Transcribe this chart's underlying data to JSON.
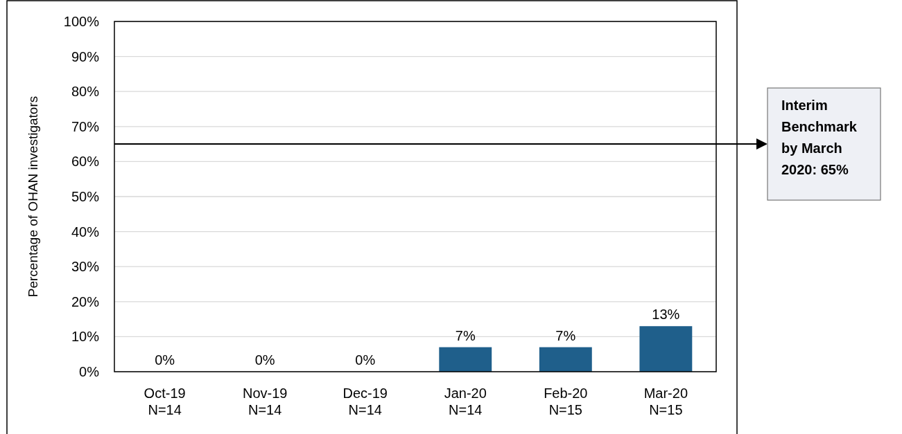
{
  "chart_data": {
    "type": "bar",
    "ylabel": "Percentage of OHAN investigators",
    "categories": [
      "Oct-19\nN=14",
      "Nov-19\nN=14",
      "Dec-19\nN=14",
      "Jan-20\nN=14",
      "Feb-20\nN=15",
      "Mar-20\nN=15"
    ],
    "values": [
      0,
      0,
      0,
      7,
      7,
      13
    ],
    "color": "#1f5f8b",
    "value_labels": [
      "0%",
      "0%",
      "0%",
      "7%",
      "7%",
      "13%"
    ],
    "ylim": [
      0,
      100
    ],
    "yticks": [
      {
        "value": 0,
        "label": "0%"
      },
      {
        "value": 10,
        "label": "10%"
      },
      {
        "value": 20,
        "label": "20%"
      },
      {
        "value": 30,
        "label": "30%"
      },
      {
        "value": 40,
        "label": "40%"
      },
      {
        "value": 50,
        "label": "50%"
      },
      {
        "value": 60,
        "label": "60%"
      },
      {
        "value": 70,
        "label": "70%"
      },
      {
        "value": 80,
        "label": "80%"
      },
      {
        "value": 90,
        "label": "90%"
      },
      {
        "value": 100,
        "label": "100%"
      }
    ],
    "grid": "y",
    "ref_lines": [
      {
        "axis": "y",
        "value": 65,
        "label": "Interim Benchmark by March 2020: 65%",
        "color": "#000000"
      }
    ]
  }
}
